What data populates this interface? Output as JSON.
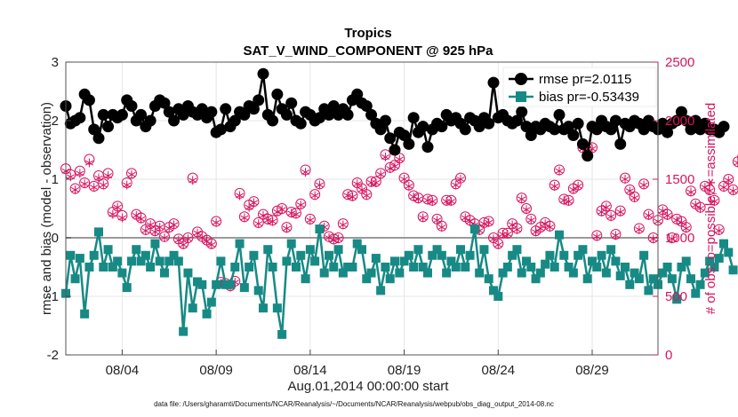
{
  "chart_data": {
    "type": "line",
    "title": "Tropics",
    "subtitle": "SAT_V_WIND_COMPONENT @ 925 hPa",
    "xlabel": "Aug.01,2014 00:00:00 start",
    "ylabel_left": "rmse and bias (model - observation)",
    "ylabel_right": "# of obs: o=possible; ∗=assimilated",
    "xlim_days": [
      0,
      31.5
    ],
    "ylim_left": [
      -2,
      3
    ],
    "ylim_right": [
      0,
      2500
    ],
    "x_ticks": [
      {
        "day": 3,
        "label": "08/04"
      },
      {
        "day": 8,
        "label": "08/09"
      },
      {
        "day": 13,
        "label": "08/14"
      },
      {
        "day": 18,
        "label": "08/19"
      },
      {
        "day": 23,
        "label": "08/24"
      },
      {
        "day": 28,
        "label": "08/29"
      }
    ],
    "y_ticks_left": [
      "-2",
      "-1",
      "0",
      "1",
      "2",
      "3"
    ],
    "y_ticks_right": [
      "0",
      "500",
      "1000",
      "1500",
      "2000",
      "2500"
    ],
    "legend": [
      {
        "name": "rmse",
        "label": "rmse pr=2.0115"
      },
      {
        "name": "bias",
        "label": "bias pr=-0.53439"
      }
    ],
    "colors": {
      "rmse": "#000000",
      "bias": "#178a85",
      "obs": "#d6145f",
      "zero": "#9a9a9a",
      "grid": "#e6e6e6"
    },
    "step_days": 0.25,
    "series": [
      {
        "name": "rmse",
        "values": [
          2.25,
          1.95,
          2.0,
          2.05,
          2.45,
          2.35,
          1.85,
          1.7,
          2.1,
          1.9,
          2.1,
          2.05,
          2.1,
          2.35,
          2.25,
          2.0,
          2.1,
          1.9,
          2.0,
          2.25,
          2.35,
          2.3,
          2.15,
          2.0,
          2.2,
          2.1,
          2.25,
          2.15,
          2.1,
          2.2,
          2.05,
          2.15,
          1.8,
          1.85,
          2.2,
          1.9,
          2.0,
          2.15,
          2.1,
          2.25,
          2.2,
          2.35,
          2.8,
          2.1,
          2.0,
          2.45,
          2.2,
          2.1,
          2.3,
          2.0,
          1.95,
          2.15,
          2.1,
          2.0,
          2.05,
          2.2,
          2.1,
          2.25,
          2.1,
          2.2,
          2.1,
          2.35,
          2.45,
          2.3,
          2.25,
          2.1,
          1.95,
          1.85,
          2.0,
          1.7,
          1.5,
          1.8,
          1.75,
          1.6,
          2.05,
          1.8,
          1.9,
          1.55,
          1.85,
          1.95,
          1.9,
          2.1,
          2.0,
          2.05,
          1.95,
          1.85,
          2.05,
          2.0,
          1.9,
          2.05,
          1.95,
          2.65,
          2.05,
          2.1,
          2.0,
          1.95,
          2.0,
          2.15,
          1.9,
          1.75,
          1.9,
          1.85,
          1.95,
          1.9,
          1.85,
          2.1,
          1.85,
          1.9,
          1.75,
          1.95,
          1.6,
          1.4,
          1.9,
          1.85,
          2.0,
          1.9,
          1.85,
          2.0,
          1.6,
          1.95,
          1.9,
          2.0,
          1.95,
          1.85,
          2.0,
          1.9,
          1.85,
          1.95,
          1.8,
          1.95,
          2.0,
          2.15,
          2.0,
          1.85,
          2.0,
          1.85,
          1.95,
          1.85,
          1.85,
          1.8,
          1.9
        ]
      },
      {
        "name": "bias",
        "values": [
          -0.95,
          -0.3,
          -0.7,
          -0.35,
          -1.3,
          -0.5,
          -0.3,
          0.1,
          -0.5,
          -0.2,
          -0.5,
          -0.4,
          -0.6,
          -0.85,
          -0.4,
          -0.2,
          -0.4,
          -0.3,
          -0.5,
          -0.1,
          -0.4,
          -0.6,
          -0.4,
          -0.3,
          -0.4,
          -1.6,
          -0.6,
          -1.2,
          -0.75,
          -0.8,
          -1.3,
          -1.1,
          -0.8,
          -0.4,
          -0.8,
          -0.8,
          -0.5,
          -0.1,
          -0.85,
          -0.5,
          -0.3,
          -0.9,
          -1.2,
          -0.2,
          -0.5,
          -1.2,
          -1.65,
          -0.4,
          -0.1,
          -0.5,
          -0.3,
          -0.7,
          -0.2,
          -0.4,
          0.15,
          -0.6,
          -0.3,
          -0.5,
          -0.2,
          -0.6,
          -0.5,
          -0.5,
          -0.1,
          -0.2,
          -0.7,
          -0.6,
          -0.35,
          -0.9,
          -0.5,
          -0.7,
          -0.4,
          -0.6,
          -0.4,
          -0.3,
          -0.5,
          -0.2,
          -0.5,
          -0.6,
          -0.3,
          -0.2,
          -0.3,
          -0.6,
          -0.4,
          -0.5,
          -0.2,
          -0.5,
          -0.3,
          0.15,
          -0.6,
          -0.2,
          -0.7,
          -0.9,
          -1.0,
          -0.6,
          -0.5,
          -0.3,
          -0.2,
          -0.6,
          -0.4,
          -0.5,
          -0.7,
          -0.6,
          -0.45,
          -0.3,
          -0.5,
          0.05,
          -0.3,
          -0.5,
          -0.6,
          -0.3,
          -0.2,
          -0.7,
          -0.4,
          -0.5,
          -0.3,
          -0.6,
          -0.2,
          -0.4,
          -0.65,
          -0.5,
          -0.8,
          -0.6,
          -0.7,
          -0.3,
          -0.9,
          -0.7,
          -0.8,
          -0.6,
          -0.5,
          -0.7,
          -1.05,
          -0.5,
          -0.4,
          -0.7,
          -0.95,
          -0.8,
          -0.6,
          -0.4,
          -0.5,
          -0.35,
          -0.1,
          -0.25,
          -0.55
        ]
      },
      {
        "name": "obs_possible",
        "values": [
          1590,
          1540,
          1420,
          1570,
          1470,
          1670,
          1440,
          1530,
          1460,
          1550,
          1220,
          1270,
          1190,
          1470,
          1550,
          1200,
          1170,
          1070,
          1120,
          1060,
          1100,
          1010,
          1090,
          1120,
          990,
          950,
          1000,
          1510,
          1050,
          1010,
          980,
          950,
          1140,
          620,
          610,
          590,
          630,
          1380,
          1180,
          1280,
          1310,
          1130,
          1200,
          1160,
          1150,
          1230,
          1250,
          1090,
          1220,
          1210,
          1290,
          1580,
          1160,
          1370,
          1460,
          1100,
          1010,
          990,
          1000,
          1120,
          1370,
          1360,
          1470,
          1420,
          1370,
          1480,
          1480,
          1550,
          1710,
          1600,
          1620,
          1680,
          1510,
          1450,
          1360,
          1340,
          1180,
          1330,
          1320,
          1160,
          1100,
          1320,
          1320,
          1460,
          1510,
          1180,
          1150,
          1120,
          1070,
          1130,
          1140,
          1000,
          950,
          1040,
          1040,
          1120,
          1080,
          1340,
          1250,
          1160,
          1060,
          1090,
          1130,
          1100,
          1450,
          1580,
          1330,
          1320,
          1420,
          1450,
          1770,
          1770,
          1770,
          1020,
          1230,
          1270,
          1190,
          1030,
          1230,
          1510,
          1410,
          1350,
          1080,
          1460,
          1200,
          1000,
          1150,
          1240,
          1200,
          1000,
          1160,
          1140,
          1090,
          1400,
          1290,
          1260,
          1440,
          1410,
          1320,
          1070,
          1440,
          1500,
          1410,
          1650,
          1690,
          1690,
          0
        ]
      },
      {
        "name": "obs_assimilated",
        "values": [
          1570,
          1520,
          1410,
          1550,
          1460,
          1640,
          1430,
          1510,
          1450,
          1530,
          1200,
          1260,
          1170,
          1450,
          1540,
          1190,
          1160,
          1060,
          1110,
          1050,
          1090,
          1000,
          1080,
          1110,
          980,
          940,
          990,
          1490,
          1040,
          1000,
          970,
          940,
          1130,
          610,
          600,
          580,
          620,
          1360,
          1170,
          1260,
          1300,
          1120,
          1190,
          1150,
          1140,
          1220,
          1240,
          1080,
          1210,
          1200,
          1280,
          1560,
          1150,
          1360,
          1450,
          1090,
          1000,
          980,
          990,
          1110,
          1360,
          1350,
          1460,
          1410,
          1360,
          1470,
          1470,
          1540,
          1690,
          1590,
          1610,
          1670,
          1500,
          1440,
          1350,
          1330,
          1170,
          1320,
          1310,
          1150,
          1090,
          1310,
          1310,
          1450,
          1500,
          1170,
          1140,
          1110,
          1060,
          1120,
          1130,
          990,
          940,
          1030,
          1030,
          1110,
          1070,
          1330,
          1240,
          1150,
          1050,
          1080,
          1120,
          1090,
          1440,
          1570,
          1320,
          1310,
          1410,
          1440,
          1760,
          1760,
          1760,
          1010,
          1220,
          1260,
          1180,
          1020,
          1220,
          1500,
          1400,
          1340,
          1070,
          1450,
          1190,
          990,
          1140,
          1230,
          1190,
          990,
          1150,
          1130,
          1080,
          1390,
          1280,
          1250,
          1430,
          1400,
          1310,
          1060,
          1430,
          1490,
          1400,
          1640,
          1680,
          1680,
          0
        ]
      }
    ]
  },
  "footer": {
    "data_file": "data file: /Users/gharamti/Documents/NCAR/Reanalysis/~/Documents/NCAR/Reanalysis/webpub/obs_diag_output_2014-08.nc"
  }
}
